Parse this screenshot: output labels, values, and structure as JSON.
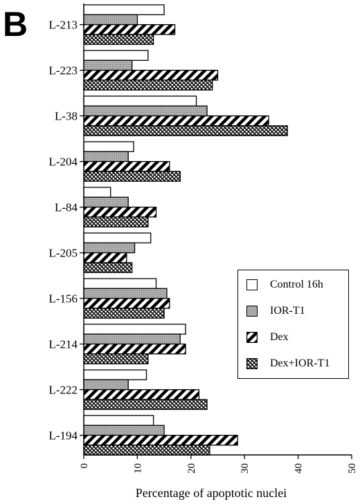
{
  "panel_label": "B",
  "chart_data": {
    "type": "bar",
    "orientation": "horizontal",
    "categories": [
      "L-213",
      "L-223",
      "L-38",
      "L-204",
      "L-84",
      "L-205",
      "L-156",
      "L-214",
      "L-222",
      "L-194"
    ],
    "series": [
      {
        "name": "Control 16h",
        "pattern": "white",
        "values": [
          15,
          12,
          21,
          9.3,
          5,
          12.5,
          13.5,
          19,
          11.7,
          13
        ]
      },
      {
        "name": "IOR-T1",
        "pattern": "gray",
        "values": [
          10,
          9,
          23,
          8.3,
          8.3,
          9.5,
          15.5,
          18,
          8.3,
          15
        ]
      },
      {
        "name": "Dex",
        "pattern": "diagonal",
        "values": [
          17,
          25,
          34.5,
          16,
          13.5,
          8,
          16,
          19,
          21.5,
          28.7
        ]
      },
      {
        "name": "Dex+IOR-T1",
        "pattern": "dotted",
        "values": [
          13,
          24,
          38,
          18,
          12,
          9,
          15,
          12,
          23,
          23.5
        ]
      }
    ],
    "xlabel": "Percentage of apoptotic nuclei",
    "xlim": [
      0,
      50
    ],
    "xticks": [
      "0",
      "10",
      "20",
      "30",
      "40",
      "50"
    ],
    "legend_position": "lower-right",
    "grid": false
  }
}
